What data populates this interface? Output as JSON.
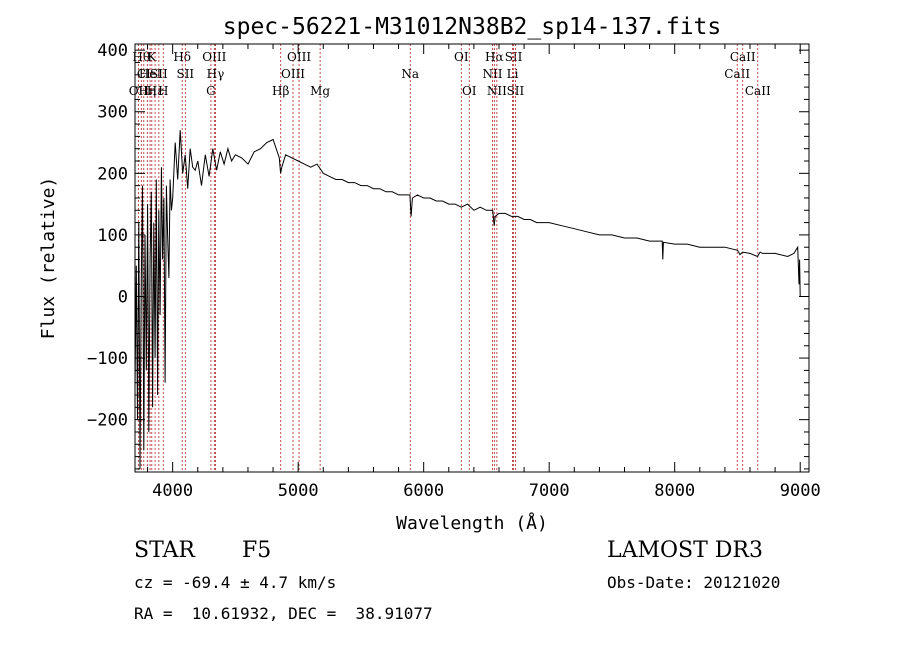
{
  "chart_data": {
    "type": "line",
    "title": "spec-56221-M31012N38B2_sp14-137.fits",
    "xlabel": "Wavelength (Å)",
    "ylabel": "Flux (relative)",
    "xlim": [
      3700,
      9070
    ],
    "ylim": [
      -285,
      410
    ],
    "xticks": [
      4000,
      5000,
      6000,
      7000,
      8000,
      9000
    ],
    "yticks": [
      -200,
      -100,
      0,
      100,
      200,
      300,
      400
    ],
    "grid": false,
    "series": [
      {
        "name": "flux",
        "x": [
          3700,
          3710,
          3720,
          3730,
          3740,
          3750,
          3760,
          3770,
          3780,
          3790,
          3800,
          3810,
          3820,
          3830,
          3840,
          3850,
          3860,
          3870,
          3880,
          3890,
          3900,
          3910,
          3920,
          3930,
          3940,
          3950,
          3960,
          3970,
          3980,
          3990,
          4000,
          4020,
          4040,
          4060,
          4080,
          4100,
          4120,
          4140,
          4160,
          4180,
          4200,
          4230,
          4260,
          4290,
          4320,
          4350,
          4380,
          4410,
          4440,
          4470,
          4500,
          4550,
          4600,
          4650,
          4700,
          4750,
          4800,
          4850,
          4860,
          4870,
          4900,
          4950,
          5000,
          5050,
          5100,
          5150,
          5200,
          5250,
          5300,
          5350,
          5400,
          5450,
          5500,
          5550,
          5600,
          5650,
          5700,
          5750,
          5800,
          5850,
          5890,
          5900,
          5910,
          5950,
          6000,
          6050,
          6100,
          6150,
          6200,
          6250,
          6300,
          6350,
          6400,
          6450,
          6500,
          6550,
          6562,
          6570,
          6600,
          6650,
          6700,
          6750,
          6800,
          6850,
          6900,
          6950,
          7000,
          7100,
          7200,
          7300,
          7400,
          7500,
          7600,
          7700,
          7800,
          7900,
          7905,
          7910,
          8000,
          8100,
          8200,
          8300,
          8400,
          8500,
          8520,
          8540,
          8600,
          8660,
          8680,
          8700,
          8800,
          8900,
          8950,
          8980,
          8990,
          8995,
          9000
        ],
        "values": [
          -150,
          50,
          -200,
          120,
          -280,
          30,
          180,
          -250,
          100,
          -120,
          150,
          -220,
          60,
          170,
          -180,
          120,
          -100,
          190,
          -160,
          140,
          -30,
          210,
          60,
          160,
          -140,
          180,
          100,
          30,
          190,
          140,
          160,
          250,
          190,
          270,
          200,
          230,
          175,
          240,
          210,
          205,
          220,
          180,
          230,
          195,
          240,
          205,
          235,
          215,
          240,
          220,
          230,
          225,
          215,
          235,
          240,
          250,
          255,
          225,
          200,
          210,
          230,
          225,
          220,
          215,
          210,
          215,
          200,
          195,
          190,
          190,
          185,
          185,
          180,
          180,
          175,
          175,
          170,
          170,
          165,
          165,
          165,
          130,
          160,
          165,
          160,
          160,
          155,
          155,
          150,
          150,
          145,
          150,
          140,
          145,
          140,
          140,
          115,
          130,
          135,
          135,
          130,
          130,
          125,
          125,
          120,
          120,
          120,
          115,
          110,
          105,
          100,
          100,
          95,
          95,
          90,
          90,
          60,
          88,
          85,
          85,
          80,
          80,
          80,
          75,
          68,
          72,
          70,
          65,
          72,
          70,
          70,
          65,
          70,
          80,
          20,
          60,
          0
        ]
      }
    ],
    "lines": [
      {
        "label": "OII",
        "wavelength": 3727,
        "row": 3
      },
      {
        "label": "Hθ",
        "wavelength": 3750,
        "row": 1
      },
      {
        "label": "CI",
        "wavelength": 3770,
        "row": 2
      },
      {
        "label": "Hη",
        "wavelength": 3798,
        "row": 3
      },
      {
        "label": "HeI",
        "wavelength": 3820,
        "row": 2
      },
      {
        "label": "K",
        "wavelength": 3834,
        "row": 1
      },
      {
        "label": "Hε",
        "wavelength": 3860,
        "row": 3
      },
      {
        "label": "SII",
        "wavelength": 3890,
        "row": 2
      },
      {
        "label": "H",
        "wavelength": 3925,
        "row": 3
      },
      {
        "label": "Hδ",
        "wavelength": 4076,
        "row": 1
      },
      {
        "label": "SII",
        "wavelength": 4101,
        "row": 2
      },
      {
        "label": "G",
        "wavelength": 4305,
        "row": 3
      },
      {
        "label": "OIII",
        "wavelength": 4332,
        "row": 1
      },
      {
        "label": "Hγ",
        "wavelength": 4341,
        "row": 2
      },
      {
        "label": "Hβ",
        "wavelength": 4861,
        "row": 3
      },
      {
        "label": "OIII",
        "wavelength": 4959,
        "row": 2
      },
      {
        "label": "OIII",
        "wavelength": 5007,
        "row": 1
      },
      {
        "label": "Mg",
        "wavelength": 5175,
        "row": 3
      },
      {
        "label": "Na",
        "wavelength": 5893,
        "row": 2
      },
      {
        "label": "OI",
        "wavelength": 6300,
        "row": 1
      },
      {
        "label": "OI",
        "wavelength": 6363,
        "row": 3
      },
      {
        "label": "NII",
        "wavelength": 6548,
        "row": 2
      },
      {
        "label": "Hα",
        "wavelength": 6563,
        "row": 1
      },
      {
        "label": "NII",
        "wavelength": 6583,
        "row": 3
      },
      {
        "label": "SII",
        "wavelength": 6716,
        "row": 1
      },
      {
        "label": "Li",
        "wavelength": 6708,
        "row": 2
      },
      {
        "label": "SII",
        "wavelength": 6731,
        "row": 3
      },
      {
        "label": "CaII",
        "wavelength": 8498,
        "row": 2
      },
      {
        "label": "CaII",
        "wavelength": 8542,
        "row": 1
      },
      {
        "label": "CaII",
        "wavelength": 8662,
        "row": 3
      }
    ]
  },
  "info": {
    "class_label": "STAR",
    "subclass": "F5",
    "cz": "cz = -69.4 ± 4.7 km/s",
    "coords": "RA =  10.61932, DEC =  38.91077",
    "survey": "LAMOST DR3",
    "obs_date": "Obs-Date: 20121020"
  }
}
